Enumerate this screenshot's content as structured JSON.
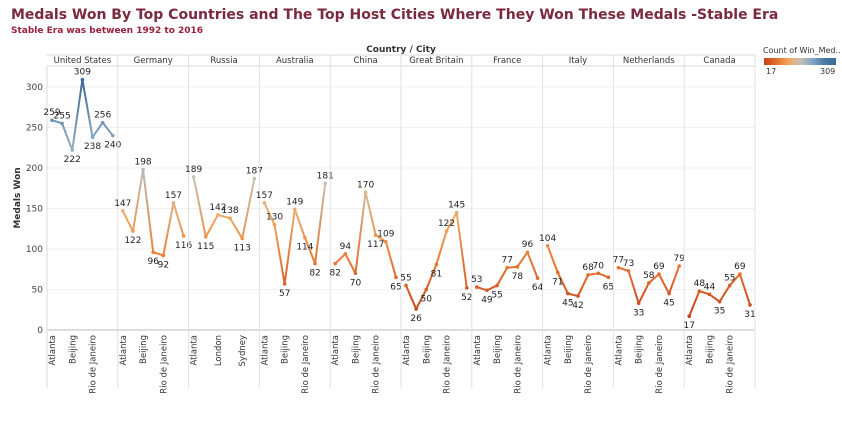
{
  "title": "Medals Won By Top Countries and The Top Host Cities Where They Won These Medals -Stable Era",
  "subtitle": "Stable Era was between 1992 to 2016",
  "legend": {
    "title": "Count of Win_Med..",
    "min": "17",
    "max": "309"
  },
  "colors": {
    "low": "#c4421d",
    "mid": "#f4a55c",
    "neutral": "#c8c0b0",
    "high": "#3a6a98"
  },
  "chart_data": {
    "type": "line",
    "title": "Medals Won By Top Countries and The Top Host Cities Where They Won These Medals -Stable Era",
    "xlabel": "Country / City",
    "ylabel": "Medals Won",
    "ylim": [
      0,
      320
    ],
    "yticks": [
      0,
      50,
      100,
      150,
      200,
      250,
      300
    ],
    "grid": true,
    "color_range": [
      17,
      309
    ],
    "panels": [
      {
        "country": "United States",
        "cities": [
          "Atlanta",
          "Beijing",
          "Rio de Janeiro"
        ],
        "values": [
          259,
          255,
          222,
          309,
          238,
          256,
          240
        ],
        "label_at": [
          0,
          2,
          4,
          6
        ]
      },
      {
        "country": "Germany",
        "cities": [
          "Atlanta",
          "Beijing",
          "Rio de Janeiro"
        ],
        "values": [
          147,
          122,
          198,
          96,
          92,
          157,
          116
        ],
        "label_at": [
          0,
          2,
          4,
          6
        ]
      },
      {
        "country": "Russia",
        "cities": [
          "Atlanta",
          "London",
          "Sydney"
        ],
        "values": [
          189,
          115,
          142,
          138,
          113,
          187
        ],
        "label_at": [
          0,
          2,
          4
        ]
      },
      {
        "country": "Australia",
        "cities": [
          "Atlanta",
          "Beijing",
          "Rio de Janeiro"
        ],
        "values": [
          157,
          130,
          57,
          149,
          114,
          82,
          181
        ],
        "label_at": [
          0,
          2,
          4,
          6
        ]
      },
      {
        "country": "China",
        "cities": [
          "Atlanta",
          "Beijing",
          "Rio de Janeiro"
        ],
        "values": [
          82,
          94,
          70,
          170,
          117,
          109,
          65
        ],
        "label_at": [
          0,
          2,
          4,
          6
        ]
      },
      {
        "country": "Great Britain",
        "cities": [
          "Atlanta",
          "Beijing",
          "Rio de Janeiro"
        ],
        "values": [
          55,
          26,
          50,
          81,
          122,
          145,
          52
        ],
        "label_at": [
          0,
          2,
          4,
          6
        ]
      },
      {
        "country": "France",
        "cities": [
          "Atlanta",
          "Beijing",
          "Rio de Janeiro"
        ],
        "values": [
          53,
          49,
          55,
          77,
          78,
          96,
          64
        ],
        "label_at": [
          0,
          2,
          4,
          6
        ]
      },
      {
        "country": "Italy",
        "cities": [
          "Atlanta",
          "Beijing",
          "Rio de Janeiro"
        ],
        "values": [
          104,
          71,
          45,
          42,
          68,
          70,
          65
        ],
        "label_at": [
          0,
          2,
          4,
          6
        ]
      },
      {
        "country": "Netherlands",
        "cities": [
          "Atlanta",
          "Beijing",
          "Rio de Janeiro"
        ],
        "values": [
          77,
          73,
          33,
          58,
          69,
          45,
          79
        ],
        "label_at": [
          0,
          2,
          4,
          6
        ]
      },
      {
        "country": "Canada",
        "cities": [
          "Atlanta",
          "Beijing",
          "Rio de Janeiro"
        ],
        "values": [
          17,
          48,
          44,
          35,
          55,
          69,
          31
        ],
        "label_at": [
          0,
          2,
          4,
          6
        ]
      }
    ]
  }
}
